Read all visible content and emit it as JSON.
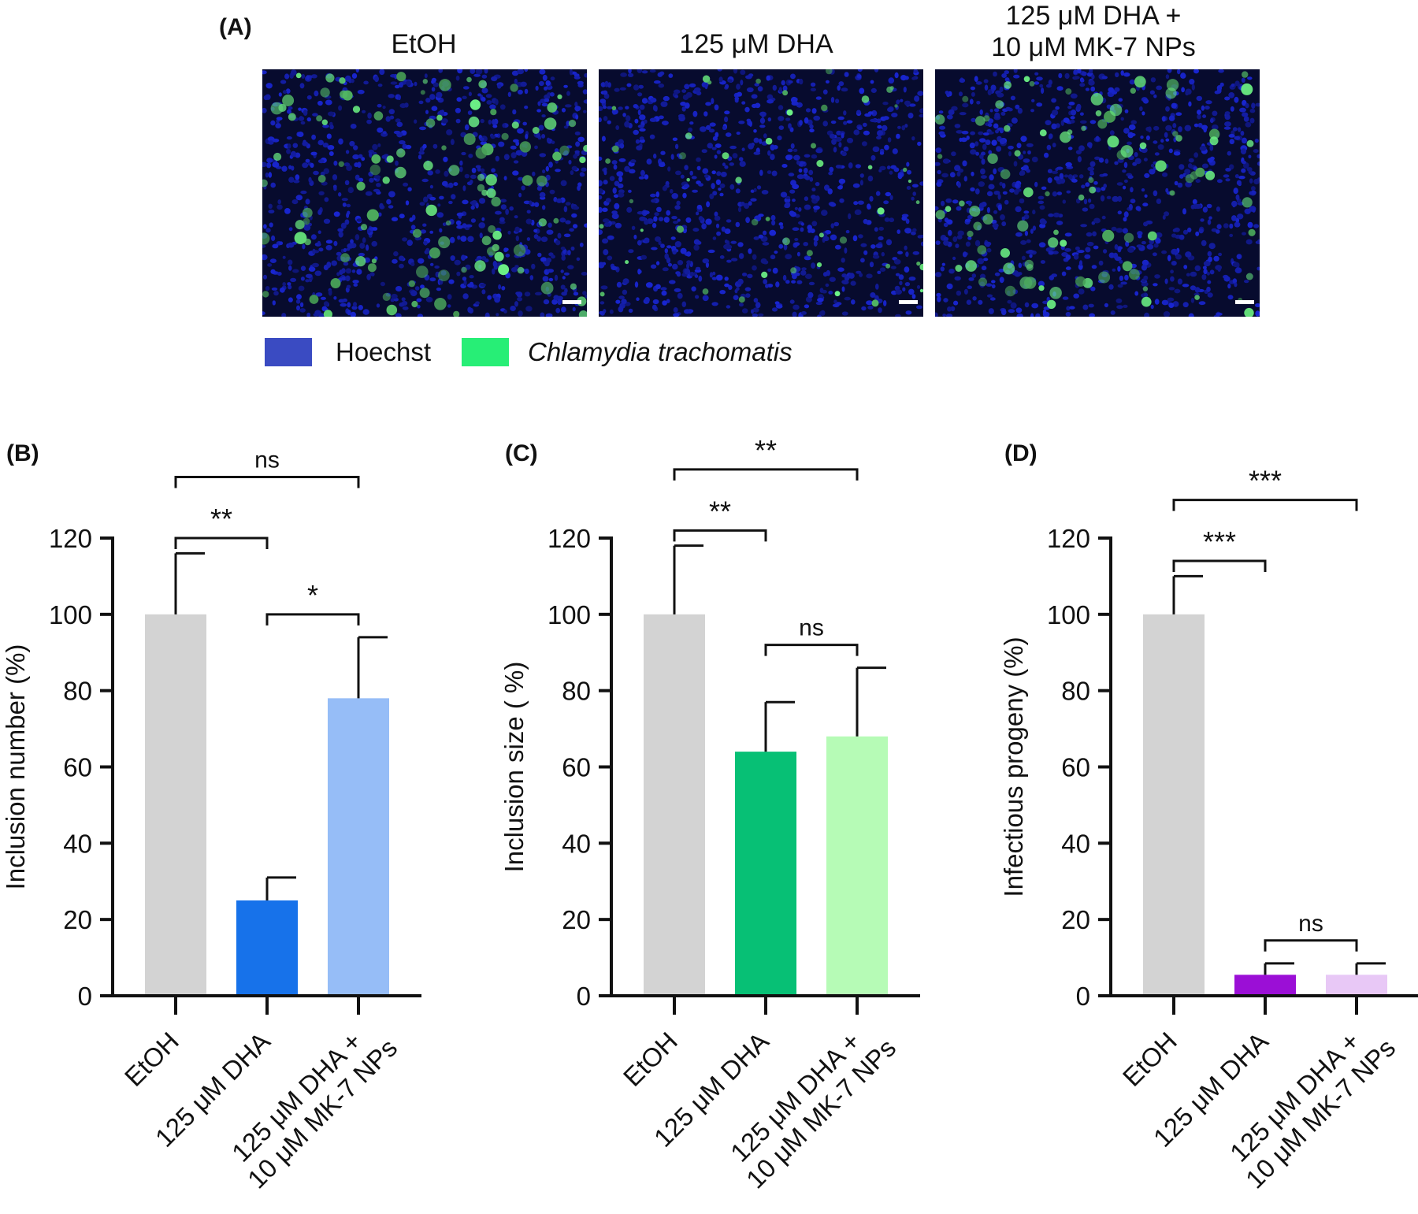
{
  "panel_a": {
    "label": "(A)",
    "images": [
      {
        "title_lines": [
          "EtOH"
        ],
        "inclusion_density": 0.55
      },
      {
        "title_lines": [
          "125 μM  DHA"
        ],
        "inclusion_density": 0.25
      },
      {
        "title_lines": [
          "125 μM  DHA +",
          "10 μM  MK-7 NPs"
        ],
        "inclusion_density": 0.45
      }
    ],
    "legend": [
      {
        "label": "Hoechst",
        "color": "#3a4bc2",
        "italic": false
      },
      {
        "label": "Chlamydia trachomatis",
        "color": "#27ee76",
        "italic": true
      }
    ]
  },
  "chart_data": [
    {
      "panel": "(B)",
      "type": "bar",
      "categories": [
        [
          "EtOH"
        ],
        [
          "125 μM DHA"
        ],
        [
          "125 μM DHA +",
          "10 μM MK-7 NPs"
        ]
      ],
      "values": [
        100,
        25,
        78
      ],
      "errors": [
        16,
        6,
        16
      ],
      "colors": [
        "#d3d3d3",
        "#1772ea",
        "#96bdf7"
      ],
      "ylabel": "Inclusion number (%)",
      "ylim": [
        0,
        120
      ],
      "yticks": [
        0,
        20,
        40,
        60,
        80,
        100,
        120
      ],
      "comparisons": [
        {
          "from": 0,
          "to": 1,
          "label": "**"
        },
        {
          "from": 0,
          "to": 2,
          "label": "ns"
        },
        {
          "from": 1,
          "to": 2,
          "label": "*"
        }
      ]
    },
    {
      "panel": "(C)",
      "type": "bar",
      "categories": [
        [
          "EtOH"
        ],
        [
          "125 μM DHA"
        ],
        [
          "125 μM DHA +",
          "10 μM MK-7 NPs"
        ]
      ],
      "values": [
        100,
        64,
        68
      ],
      "errors": [
        18,
        13,
        18
      ],
      "colors": [
        "#d3d3d3",
        "#07c075",
        "#b6fbb6"
      ],
      "ylabel": "Inclusion size ( %)",
      "ylim": [
        0,
        120
      ],
      "yticks": [
        0,
        20,
        40,
        60,
        80,
        100,
        120
      ],
      "comparisons": [
        {
          "from": 0,
          "to": 1,
          "label": "**"
        },
        {
          "from": 0,
          "to": 2,
          "label": "**"
        },
        {
          "from": 1,
          "to": 2,
          "label": "ns"
        }
      ]
    },
    {
      "panel": "(D)",
      "type": "bar",
      "categories": [
        [
          "EtOH"
        ],
        [
          "125 μM DHA"
        ],
        [
          "125 μM DHA +",
          "10 μM MK-7 NPs"
        ]
      ],
      "values": [
        100,
        5.5,
        5.5
      ],
      "errors": [
        10,
        3,
        3
      ],
      "colors": [
        "#d3d3d3",
        "#9b0fd6",
        "#e8c8f6"
      ],
      "ylabel": "Infectious progeny (%)",
      "ylim": [
        0,
        120
      ],
      "yticks": [
        0,
        20,
        40,
        60,
        80,
        100,
        120
      ],
      "comparisons": [
        {
          "from": 0,
          "to": 1,
          "label": "***"
        },
        {
          "from": 0,
          "to": 2,
          "label": "***"
        },
        {
          "from": 1,
          "to": 2,
          "label": "ns"
        }
      ]
    }
  ]
}
